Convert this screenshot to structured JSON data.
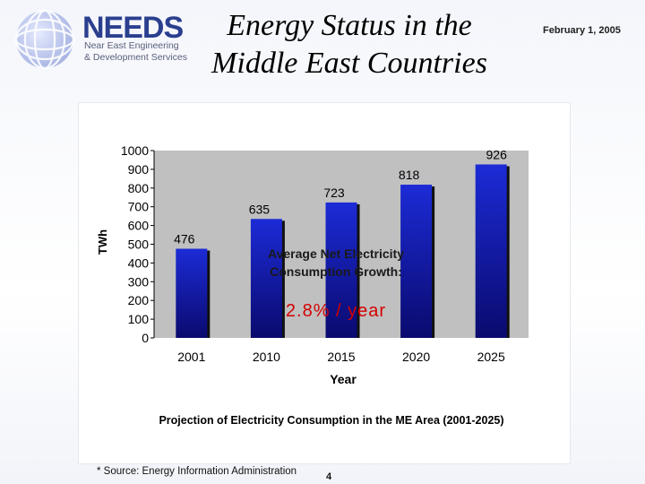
{
  "header": {
    "logo_name": "NEEDS",
    "logo_line1": "Near East Engineering",
    "logo_line2": "& Development Services",
    "title_line1": "Energy Status in the",
    "title_line2": "Middle East Countries",
    "date": "February 1, 2005"
  },
  "chart_data": {
    "type": "bar",
    "categories": [
      "2001",
      "2010",
      "2015",
      "2020",
      "2025"
    ],
    "values": [
      476,
      635,
      723,
      818,
      926
    ],
    "ylabel": "TWh",
    "xlabel": "Year",
    "ylim": [
      0,
      1000
    ],
    "yticks": [
      0,
      100,
      200,
      300,
      400,
      500,
      600,
      700,
      800,
      900,
      1000
    ],
    "grid": false,
    "legend": "none",
    "annotation_line1": "Average Net Electricity",
    "annotation_line2": "Consumption Growth:",
    "growth_rate": "2.8% / year",
    "caption": "Projection of Electricity Consumption in the ME Area (2001-2025)",
    "colors": {
      "plot_bg": "#c0c0c0",
      "bar_top": "#1c2bd6",
      "bar_bottom": "#0a0a6e",
      "growth_text": "#d40000"
    }
  },
  "footer": {
    "source": "* Source: Energy Information Administration",
    "page_number": "4"
  }
}
